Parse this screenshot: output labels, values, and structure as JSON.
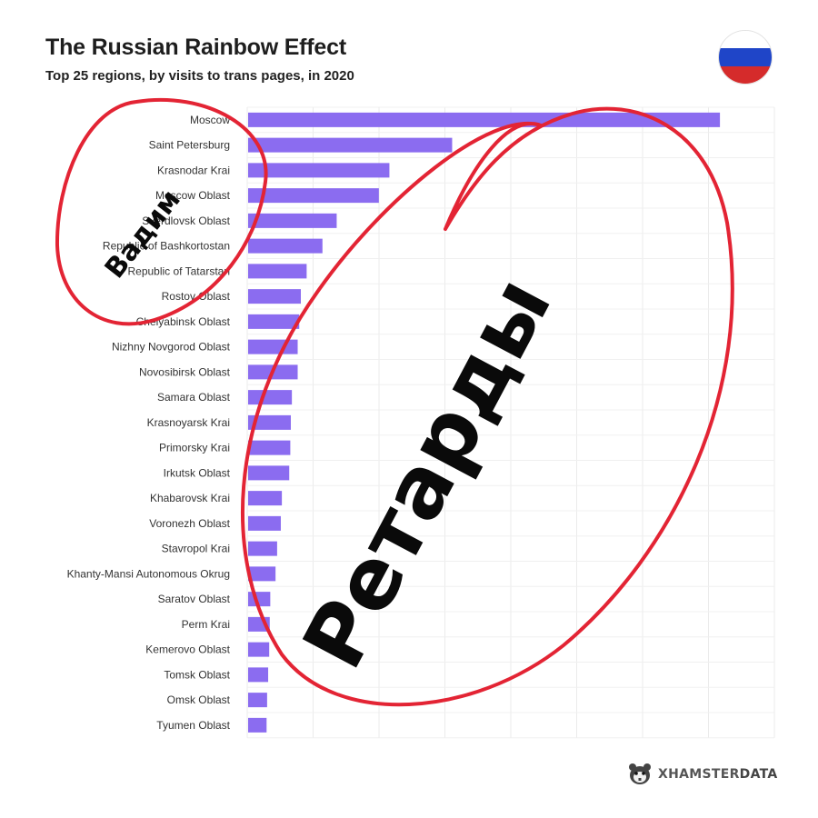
{
  "header": {
    "title": "The Russian Rainbow Effect",
    "subtitle": "Top 25 regions, by visits to trans pages, in 2020"
  },
  "flag": {
    "icon": "russia-flag-icon",
    "colors": [
      "#ffffff",
      "#1f45c8",
      "#d52b2b"
    ]
  },
  "chart_data": {
    "type": "bar",
    "orientation": "horizontal",
    "title": "The Russian Rainbow Effect",
    "subtitle": "Top 25 regions, by visits to trans pages, in 2020",
    "xlim": [
      0,
      100
    ],
    "grid": true,
    "bar_color": "#8b6cf0",
    "categories": [
      "Moscow",
      "Saint Petersburg",
      "Krasnodar Krai",
      "Moscow Oblast",
      "Sverdlovsk Oblast",
      "Republic of Bashkortostan",
      "Republic of Tatarstan",
      "Rostov Oblast",
      "Chelyabinsk Oblast",
      "Nizhny Novgorod Oblast",
      "Novosibirsk Oblast",
      "Samara Oblast",
      "Krasnoyarsk Krai",
      "Primorsky Krai",
      "Irkutsk Oblast",
      "Khabarovsk Krai",
      "Voronezh Oblast",
      "Stavropol Krai",
      "Khanty-Mansi Autonomous Okrug",
      "Saratov Oblast",
      "Perm Krai",
      "Kemerovo Oblast",
      "Tomsk Oblast",
      "Omsk Oblast",
      "Tyumen Oblast"
    ],
    "values": [
      89.5,
      38.7,
      26.8,
      24.8,
      16.8,
      14.1,
      11.1,
      10.0,
      9.7,
      9.4,
      9.4,
      8.3,
      8.1,
      8.0,
      7.8,
      6.4,
      6.2,
      5.5,
      5.2,
      4.2,
      4.1,
      4.0,
      3.8,
      3.6,
      3.5
    ]
  },
  "annotations": {
    "circle_color": "#e32434",
    "small_circle_text": "Вадим",
    "large_circle_text": "Ретарды"
  },
  "brand": {
    "icon": "hamster-logo-icon",
    "name_part1": "XHAMSTER",
    "name_part2": "DATA"
  }
}
